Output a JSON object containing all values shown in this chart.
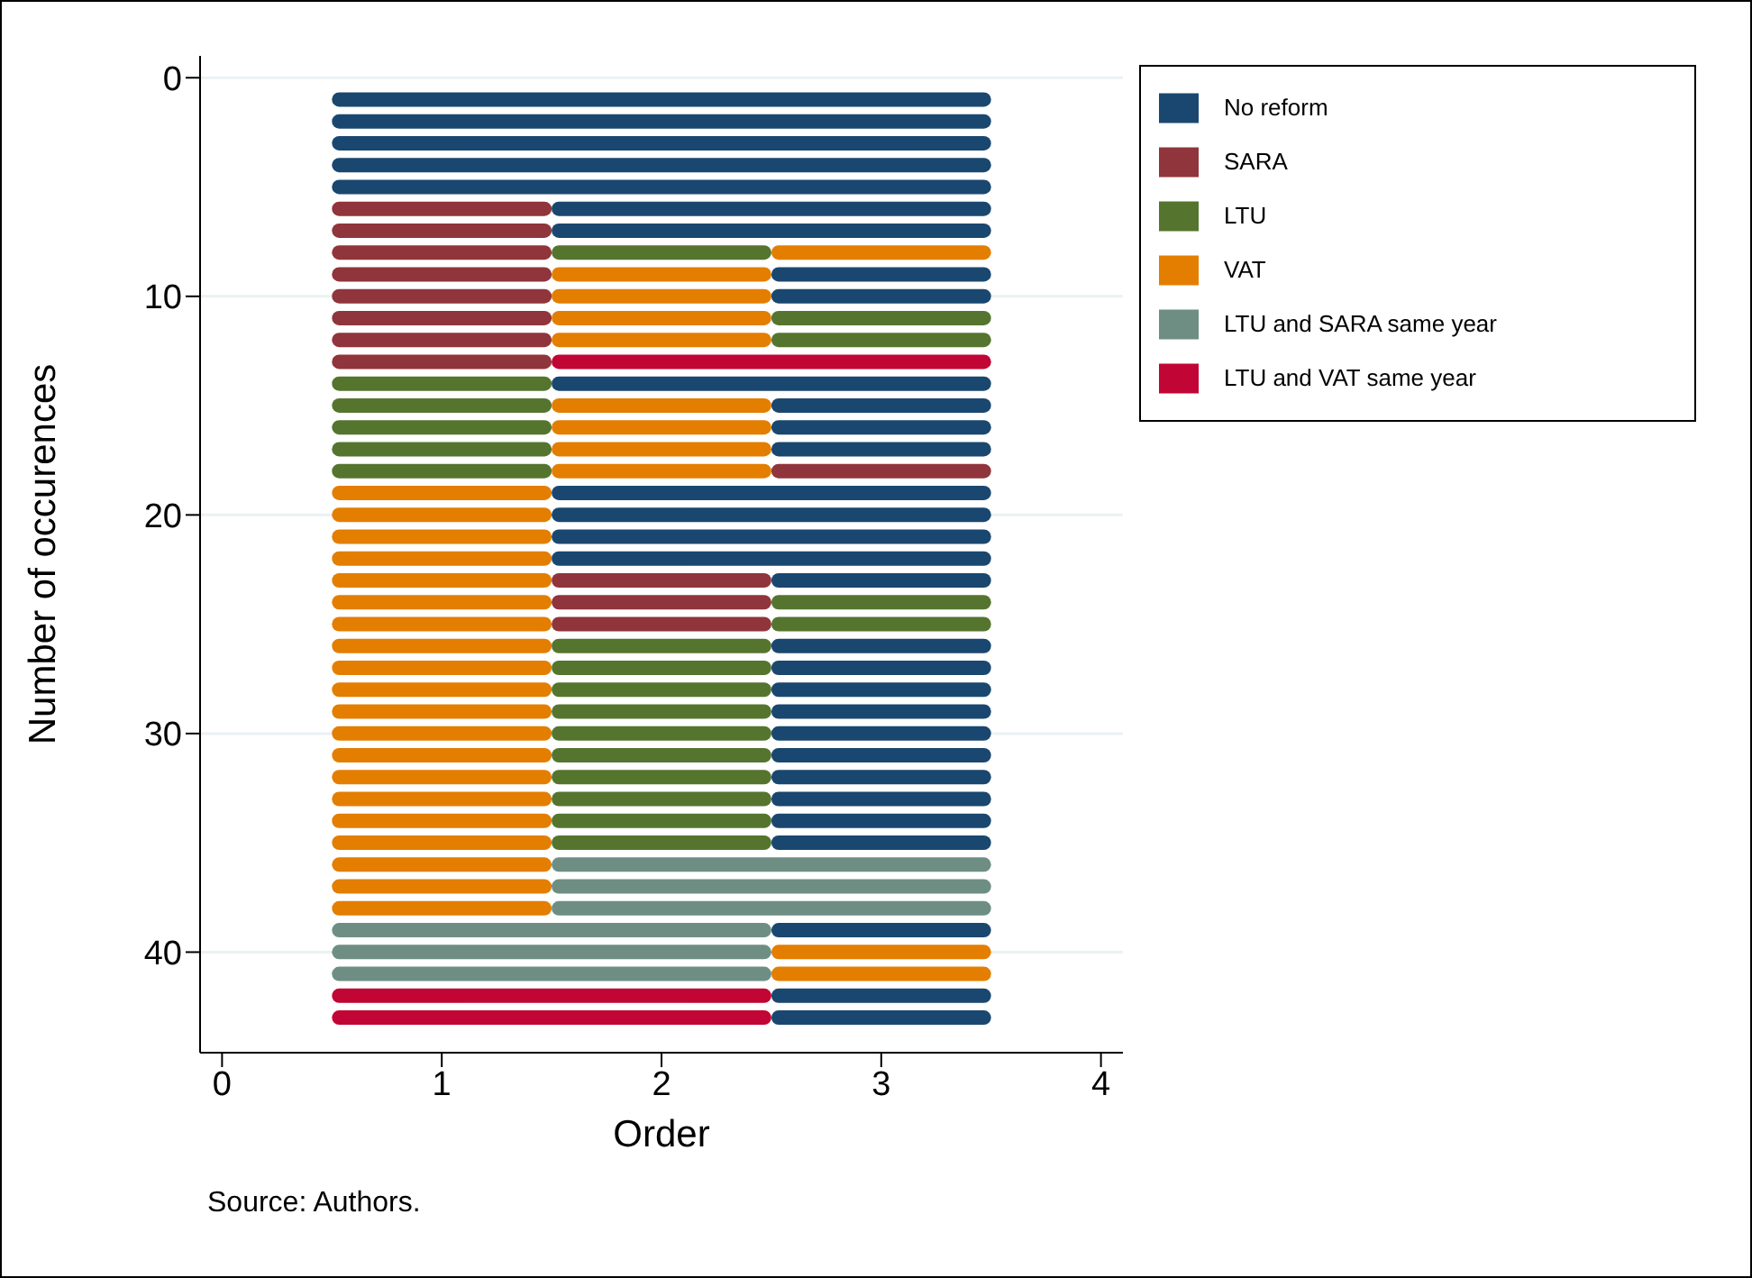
{
  "chart_data": {
    "type": "bar",
    "orientation": "horizontal",
    "xlabel": "Order",
    "ylabel": "Number of occurences",
    "annotations": [
      "Source: Authors."
    ],
    "x": [
      1,
      2,
      3,
      4,
      5,
      6,
      7,
      8,
      9,
      10,
      11,
      12,
      13,
      14,
      15,
      16,
      17,
      18,
      19,
      20,
      21,
      22,
      23,
      24,
      25,
      26,
      27,
      28,
      29,
      30,
      31,
      32,
      33,
      34,
      35,
      36,
      37,
      38,
      39,
      40,
      41,
      42,
      43
    ],
    "xlim": [
      -0.1,
      4.1
    ],
    "xticks": [
      0,
      1,
      2,
      3,
      4
    ],
    "ylim": [
      44.6,
      -1
    ],
    "yticks": [
      0,
      10,
      20,
      30,
      40
    ],
    "grid": "y",
    "legend": "top right",
    "series": [
      {
        "name": "No reform",
        "color": "#1a476f",
        "base": [
          0.5,
          0.5,
          0.5,
          0.5,
          0.5,
          1.5,
          1.5,
          null,
          2.5,
          2.5,
          null,
          null,
          null,
          1.5,
          2.5,
          2.5,
          2.5,
          null,
          1.5,
          1.5,
          1.5,
          1.5,
          2.5,
          null,
          null,
          2.5,
          2.5,
          2.5,
          2.5,
          2.5,
          2.5,
          2.5,
          2.5,
          2.5,
          2.5,
          null,
          null,
          null,
          2.5,
          null,
          null,
          2.5,
          2.5
        ],
        "values": [
          3,
          3,
          3,
          3,
          3,
          2,
          2,
          null,
          1,
          1,
          null,
          null,
          null,
          2,
          1,
          1,
          1,
          null,
          2,
          2,
          2,
          2,
          1,
          null,
          null,
          1,
          1,
          1,
          1,
          1,
          1,
          1,
          1,
          1,
          1,
          null,
          null,
          null,
          1,
          null,
          null,
          1,
          1
        ]
      },
      {
        "name": "SARA",
        "color": "#90353b",
        "base": [
          null,
          null,
          null,
          null,
          null,
          0.5,
          0.5,
          0.5,
          0.5,
          0.5,
          0.5,
          0.5,
          0.5,
          null,
          null,
          null,
          null,
          2.5,
          null,
          null,
          null,
          null,
          1.5,
          1.5,
          1.5,
          null,
          null,
          null,
          null,
          null,
          null,
          null,
          null,
          null,
          null,
          null,
          null,
          null,
          null,
          null,
          null,
          null,
          null
        ],
        "values": [
          null,
          null,
          null,
          null,
          null,
          1,
          1,
          1,
          1,
          1,
          1,
          1,
          1,
          null,
          null,
          null,
          null,
          1,
          null,
          null,
          null,
          null,
          1,
          1,
          1,
          null,
          null,
          null,
          null,
          null,
          null,
          null,
          null,
          null,
          null,
          null,
          null,
          null,
          null,
          null,
          null,
          null,
          null
        ]
      },
      {
        "name": "LTU",
        "color": "#55752f",
        "base": [
          null,
          null,
          null,
          null,
          null,
          null,
          null,
          1.5,
          null,
          null,
          2.5,
          2.5,
          null,
          0.5,
          0.5,
          0.5,
          0.5,
          0.5,
          null,
          null,
          null,
          null,
          null,
          2.5,
          2.5,
          1.5,
          1.5,
          1.5,
          1.5,
          1.5,
          1.5,
          1.5,
          1.5,
          1.5,
          1.5,
          null,
          null,
          null,
          null,
          null,
          null,
          null,
          null
        ],
        "values": [
          null,
          null,
          null,
          null,
          null,
          null,
          null,
          1,
          null,
          null,
          1,
          1,
          null,
          1,
          1,
          1,
          1,
          1,
          null,
          null,
          null,
          null,
          null,
          1,
          1,
          1,
          1,
          1,
          1,
          1,
          1,
          1,
          1,
          1,
          1,
          null,
          null,
          null,
          null,
          null,
          null,
          null,
          null
        ]
      },
      {
        "name": "VAT",
        "color": "#e37e00",
        "base": [
          null,
          null,
          null,
          null,
          null,
          null,
          null,
          2.5,
          1.5,
          1.5,
          1.5,
          1.5,
          null,
          null,
          1.5,
          1.5,
          1.5,
          1.5,
          0.5,
          0.5,
          0.5,
          0.5,
          0.5,
          0.5,
          0.5,
          0.5,
          0.5,
          0.5,
          0.5,
          0.5,
          0.5,
          0.5,
          0.5,
          0.5,
          0.5,
          0.5,
          0.5,
          0.5,
          null,
          2.5,
          2.5,
          null,
          null
        ],
        "values": [
          null,
          null,
          null,
          null,
          null,
          null,
          null,
          1,
          1,
          1,
          1,
          1,
          null,
          null,
          1,
          1,
          1,
          1,
          1,
          1,
          1,
          1,
          1,
          1,
          1,
          1,
          1,
          1,
          1,
          1,
          1,
          1,
          1,
          1,
          1,
          1,
          1,
          1,
          null,
          1,
          1,
          null,
          null
        ]
      },
      {
        "name": "LTU and SARA same year",
        "color": "#6e8e84",
        "base": [
          null,
          null,
          null,
          null,
          null,
          null,
          null,
          null,
          null,
          null,
          null,
          null,
          null,
          null,
          null,
          null,
          null,
          null,
          null,
          null,
          null,
          null,
          null,
          null,
          null,
          null,
          null,
          null,
          null,
          null,
          null,
          null,
          null,
          null,
          null,
          1.5,
          1.5,
          1.5,
          0.5,
          0.5,
          0.5,
          null,
          null
        ],
        "values": [
          null,
          null,
          null,
          null,
          null,
          null,
          null,
          null,
          null,
          null,
          null,
          null,
          null,
          null,
          null,
          null,
          null,
          null,
          null,
          null,
          null,
          null,
          null,
          null,
          null,
          null,
          null,
          null,
          null,
          null,
          null,
          null,
          null,
          null,
          null,
          2,
          2,
          2,
          2,
          2,
          2,
          null,
          null
        ]
      },
      {
        "name": "LTU and VAT same year",
        "color": "#c10534",
        "base": [
          null,
          null,
          null,
          null,
          null,
          null,
          null,
          null,
          null,
          null,
          null,
          null,
          1.5,
          null,
          null,
          null,
          null,
          null,
          null,
          null,
          null,
          null,
          null,
          null,
          null,
          null,
          null,
          null,
          null,
          null,
          null,
          null,
          null,
          null,
          null,
          null,
          null,
          null,
          null,
          null,
          null,
          0.5,
          0.5
        ],
        "values": [
          null,
          null,
          null,
          null,
          null,
          null,
          null,
          null,
          null,
          null,
          null,
          null,
          2,
          null,
          null,
          null,
          null,
          null,
          null,
          null,
          null,
          null,
          null,
          null,
          null,
          null,
          null,
          null,
          null,
          null,
          null,
          null,
          null,
          null,
          null,
          null,
          null,
          null,
          null,
          null,
          null,
          2,
          2
        ]
      }
    ]
  }
}
